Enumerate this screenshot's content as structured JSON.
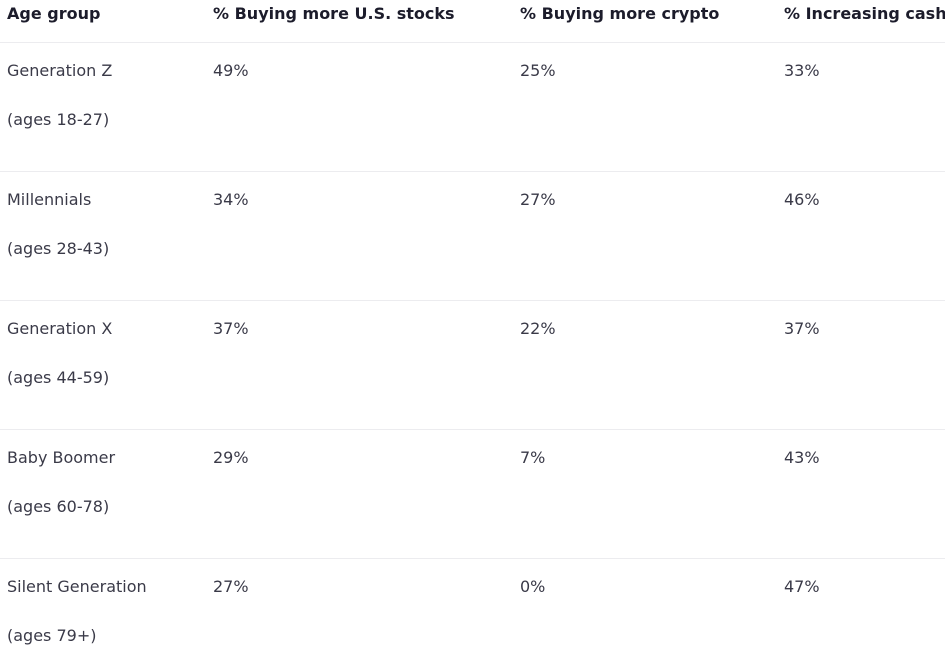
{
  "table": {
    "header": [
      "Age group",
      "% Buying more U.S. stocks",
      "% Buying more crypto",
      "% Increasing cash"
    ],
    "rows": [
      {
        "group": "Generation Z",
        "ages": "(ages 18-27)",
        "cells": [
          "49%",
          "25%",
          "33%"
        ]
      },
      {
        "group": "Millennials",
        "ages": "(ages 28-43)",
        "cells": [
          "34%",
          "27%",
          "46%"
        ]
      },
      {
        "group": "Generation X",
        "ages": "(ages 44-59)",
        "cells": [
          "37%",
          "22%",
          "37%"
        ]
      },
      {
        "group": "Baby Boomer",
        "ages": "(ages 60-78)",
        "cells": [
          "29%",
          "7%",
          "43%"
        ]
      },
      {
        "group": "Silent Generation",
        "ages": "(ages 79+)",
        "cells": [
          "27%",
          "0%",
          "47%"
        ]
      }
    ]
  }
}
